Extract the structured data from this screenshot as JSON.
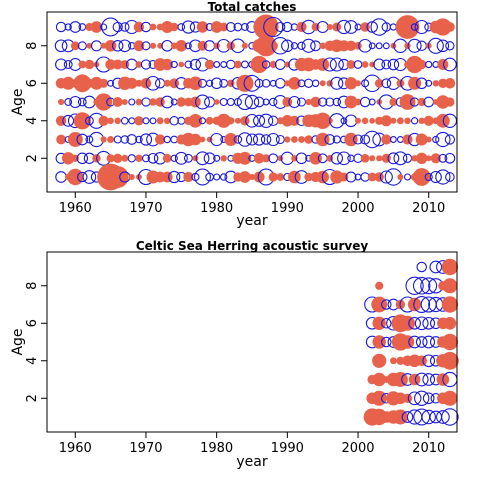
{
  "chart_data": [
    {
      "type": "scatter",
      "title": "Total catches",
      "xlabel": "year",
      "ylabel": "Age",
      "xlim": [
        1956,
        2014
      ],
      "ylim": [
        0.2,
        9.8
      ],
      "xticks": [
        1960,
        1970,
        1980,
        1990,
        2000,
        2010
      ],
      "yticks": [
        2,
        4,
        6,
        8
      ],
      "grid": false,
      "encoding": "bubble residuals: filled = positive, open = negative, size = magnitude",
      "colors": {
        "positive": "#e8624b",
        "negative": "#1a1adc"
      },
      "x_years": [
        1958,
        2013
      ],
      "y_ages": [
        1,
        9
      ],
      "bubbles": [
        {
          "age": 1,
          "year": 1958,
          "value": -0.5
        },
        {
          "age": 1,
          "year": 1960,
          "value": 1.2
        },
        {
          "age": 1,
          "year": 1962,
          "value": -0.7
        },
        {
          "age": 1,
          "year": 1965,
          "value": 3.2
        },
        {
          "age": 1,
          "year": 1966,
          "value": 2.1
        },
        {
          "age": 1,
          "year": 1970,
          "value": -1.0
        },
        {
          "age": 1,
          "year": 1978,
          "value": -1.1
        },
        {
          "age": 1,
          "year": 1987,
          "value": -1.1
        },
        {
          "age": 1,
          "year": 1996,
          "value": -1.0
        },
        {
          "age": 1,
          "year": 2005,
          "value": -1.2
        },
        {
          "age": 1,
          "year": 2009,
          "value": 1.4
        },
        {
          "age": 1,
          "year": 2012,
          "value": -0.9
        },
        {
          "age": 3,
          "year": 1960,
          "value": 1.0
        },
        {
          "age": 3,
          "year": 1963,
          "value": -0.9
        },
        {
          "age": 3,
          "year": 2002,
          "value": -1.2
        },
        {
          "age": 3,
          "year": 2012,
          "value": -0.9
        },
        {
          "age": 4,
          "year": 1961,
          "value": 1.3
        },
        {
          "age": 4,
          "year": 1963,
          "value": -1.0
        },
        {
          "age": 4,
          "year": 1981,
          "value": 0.9
        },
        {
          "age": 4,
          "year": 1995,
          "value": 1.2
        },
        {
          "age": 4,
          "year": 1997,
          "value": -0.9
        },
        {
          "age": 5,
          "year": 1964,
          "value": 1.3
        },
        {
          "age": 5,
          "year": 1984,
          "value": -1.0
        },
        {
          "age": 5,
          "year": 2004,
          "value": -0.9
        },
        {
          "age": 5,
          "year": 2007,
          "value": 1.1
        },
        {
          "age": 6,
          "year": 1961,
          "value": 1.4
        },
        {
          "age": 6,
          "year": 1984,
          "value": 1.3
        },
        {
          "age": 6,
          "year": 1985,
          "value": -1.1
        },
        {
          "age": 6,
          "year": 2002,
          "value": -1.2
        },
        {
          "age": 7,
          "year": 1964,
          "value": -1.0
        },
        {
          "age": 7,
          "year": 1986,
          "value": 1.3
        },
        {
          "age": 7,
          "year": 2008,
          "value": 1.3
        },
        {
          "age": 8,
          "year": 1987,
          "value": 2.0
        },
        {
          "age": 8,
          "year": 1989,
          "value": -1.2
        },
        {
          "age": 8,
          "year": 2011,
          "value": -1.0
        },
        {
          "age": 9,
          "year": 1965,
          "value": -1.4
        },
        {
          "age": 9,
          "year": 1987,
          "value": 2.8
        },
        {
          "age": 9,
          "year": 1988,
          "value": -1.6
        },
        {
          "age": 9,
          "year": 2007,
          "value": 2.5
        },
        {
          "age": 9,
          "year": 2003,
          "value": -1.2
        },
        {
          "age": 9,
          "year": 2012,
          "value": 1.3
        }
      ]
    },
    {
      "type": "scatter",
      "title": "Celtic Sea Herring acoustic survey",
      "xlabel": "year",
      "ylabel": "Age",
      "xlim": [
        1956,
        2014
      ],
      "ylim": [
        0.2,
        9.8
      ],
      "xticks": [
        1960,
        1970,
        1980,
        1990,
        2000,
        2010
      ],
      "yticks": [
        2,
        4,
        6,
        8
      ],
      "grid": false,
      "encoding": "bubble residuals: filled = positive, open = negative, size = magnitude",
      "colors": {
        "positive": "#e8624b",
        "negative": "#1a1adc"
      },
      "x_years": [
        2002,
        2013
      ],
      "y_ages": [
        1,
        9
      ],
      "bubbles": [
        {
          "age": 1,
          "year": 2002,
          "value": 1.3
        },
        {
          "age": 1,
          "year": 2003,
          "value": 1.2
        },
        {
          "age": 1,
          "year": 2004,
          "value": 0.6
        },
        {
          "age": 1,
          "year": 2005,
          "value": 0.8
        },
        {
          "age": 1,
          "year": 2006,
          "value": 1.0
        },
        {
          "age": 1,
          "year": 2007,
          "value": -0.5
        },
        {
          "age": 1,
          "year": 2008,
          "value": -0.9
        },
        {
          "age": 1,
          "year": 2009,
          "value": -1.1
        },
        {
          "age": 1,
          "year": 2010,
          "value": -0.8
        },
        {
          "age": 1,
          "year": 2011,
          "value": -0.6
        },
        {
          "age": 1,
          "year": 2012,
          "value": -0.7
        },
        {
          "age": 1,
          "year": 2013,
          "value": -1.2
        },
        {
          "age": 2,
          "year": 2002,
          "value": 0.6
        },
        {
          "age": 2,
          "year": 2003,
          "value": 1.0
        },
        {
          "age": 2,
          "year": 2004,
          "value": -0.4
        },
        {
          "age": 2,
          "year": 2005,
          "value": 0.9
        },
        {
          "age": 2,
          "year": 2006,
          "value": 0.6
        },
        {
          "age": 2,
          "year": 2007,
          "value": 0.4
        },
        {
          "age": 2,
          "year": 2008,
          "value": -0.7
        },
        {
          "age": 2,
          "year": 2009,
          "value": -0.9
        },
        {
          "age": 2,
          "year": 2010,
          "value": -0.5
        },
        {
          "age": 2,
          "year": 2011,
          "value": -0.4
        },
        {
          "age": 2,
          "year": 2012,
          "value": 0.6
        },
        {
          "age": 2,
          "year": 2013,
          "value": 1.0
        },
        {
          "age": 3,
          "year": 2002,
          "value": 0.4
        },
        {
          "age": 3,
          "year": 2003,
          "value": 0.8
        },
        {
          "age": 3,
          "year": 2004,
          "value": 0.2
        },
        {
          "age": 3,
          "year": 2005,
          "value": 0.8
        },
        {
          "age": 3,
          "year": 2006,
          "value": 1.0
        },
        {
          "age": 3,
          "year": 2007,
          "value": -0.6
        },
        {
          "age": 3,
          "year": 2008,
          "value": 0.6
        },
        {
          "age": 3,
          "year": 2009,
          "value": -0.7
        },
        {
          "age": 3,
          "year": 2010,
          "value": -0.6
        },
        {
          "age": 3,
          "year": 2011,
          "value": -0.5
        },
        {
          "age": 3,
          "year": 2012,
          "value": 0.7
        },
        {
          "age": 3,
          "year": 2013,
          "value": -0.9
        },
        {
          "age": 4,
          "year": 2003,
          "value": 0.9
        },
        {
          "age": 4,
          "year": 2005,
          "value": 0.2
        },
        {
          "age": 4,
          "year": 2006,
          "value": 0.3
        },
        {
          "age": 4,
          "year": 2007,
          "value": 0.5
        },
        {
          "age": 4,
          "year": 2008,
          "value": 0.7
        },
        {
          "age": 4,
          "year": 2009,
          "value": 0.5
        },
        {
          "age": 4,
          "year": 2010,
          "value": -0.6
        },
        {
          "age": 4,
          "year": 2011,
          "value": -0.5
        },
        {
          "age": 4,
          "year": 2012,
          "value": 0.8
        },
        {
          "age": 4,
          "year": 2013,
          "value": 1.4
        },
        {
          "age": 5,
          "year": 2002,
          "value": -0.6
        },
        {
          "age": 5,
          "year": 2003,
          "value": 0.8
        },
        {
          "age": 5,
          "year": 2004,
          "value": -0.4
        },
        {
          "age": 5,
          "year": 2005,
          "value": -0.5
        },
        {
          "age": 5,
          "year": 2006,
          "value": 1.3
        },
        {
          "age": 5,
          "year": 2007,
          "value": 0.8
        },
        {
          "age": 5,
          "year": 2008,
          "value": -0.6
        },
        {
          "age": 5,
          "year": 2009,
          "value": -0.5
        },
        {
          "age": 5,
          "year": 2010,
          "value": -0.6
        },
        {
          "age": 5,
          "year": 2011,
          "value": -0.5
        },
        {
          "age": 5,
          "year": 2012,
          "value": 0.6
        },
        {
          "age": 5,
          "year": 2013,
          "value": 1.2
        },
        {
          "age": 6,
          "year": 2002,
          "value": -0.6
        },
        {
          "age": 6,
          "year": 2003,
          "value": 0.8
        },
        {
          "age": 6,
          "year": 2004,
          "value": -0.4
        },
        {
          "age": 6,
          "year": 2005,
          "value": -0.8
        },
        {
          "age": 6,
          "year": 2006,
          "value": 1.4
        },
        {
          "age": 6,
          "year": 2007,
          "value": 1.0
        },
        {
          "age": 6,
          "year": 2008,
          "value": -0.6
        },
        {
          "age": 6,
          "year": 2009,
          "value": -0.7
        },
        {
          "age": 6,
          "year": 2010,
          "value": -0.6
        },
        {
          "age": 6,
          "year": 2011,
          "value": -0.5
        },
        {
          "age": 6,
          "year": 2012,
          "value": 0.6
        },
        {
          "age": 6,
          "year": 2013,
          "value": 0.7
        },
        {
          "age": 7,
          "year": 2002,
          "value": -1.0
        },
        {
          "age": 7,
          "year": 2003,
          "value": 1.1
        },
        {
          "age": 7,
          "year": 2004,
          "value": -0.4
        },
        {
          "age": 7,
          "year": 2005,
          "value": -0.5
        },
        {
          "age": 7,
          "year": 2006,
          "value": 0.4
        },
        {
          "age": 7,
          "year": 2007,
          "value": -1.0
        },
        {
          "age": 7,
          "year": 2008,
          "value": 0.8
        },
        {
          "age": 7,
          "year": 2009,
          "value": -1.1
        },
        {
          "age": 7,
          "year": 2010,
          "value": -1.0
        },
        {
          "age": 7,
          "year": 2011,
          "value": -0.9
        },
        {
          "age": 7,
          "year": 2012,
          "value": -0.8
        },
        {
          "age": 7,
          "year": 2013,
          "value": 1.2
        },
        {
          "age": 8,
          "year": 2003,
          "value": 0.3
        },
        {
          "age": 8,
          "year": 2008,
          "value": -1.3
        },
        {
          "age": 8,
          "year": 2009,
          "value": -1.2
        },
        {
          "age": 8,
          "year": 2010,
          "value": -1.1
        },
        {
          "age": 8,
          "year": 2011,
          "value": -0.9
        },
        {
          "age": 8,
          "year": 2012,
          "value": 0.4
        },
        {
          "age": 8,
          "year": 2013,
          "value": 1.0
        },
        {
          "age": 9,
          "year": 2009,
          "value": -0.4
        },
        {
          "age": 9,
          "year": 2011,
          "value": -0.6
        },
        {
          "age": 9,
          "year": 2012,
          "value": -0.7
        },
        {
          "age": 9,
          "year": 2013,
          "value": 1.2
        }
      ]
    }
  ]
}
